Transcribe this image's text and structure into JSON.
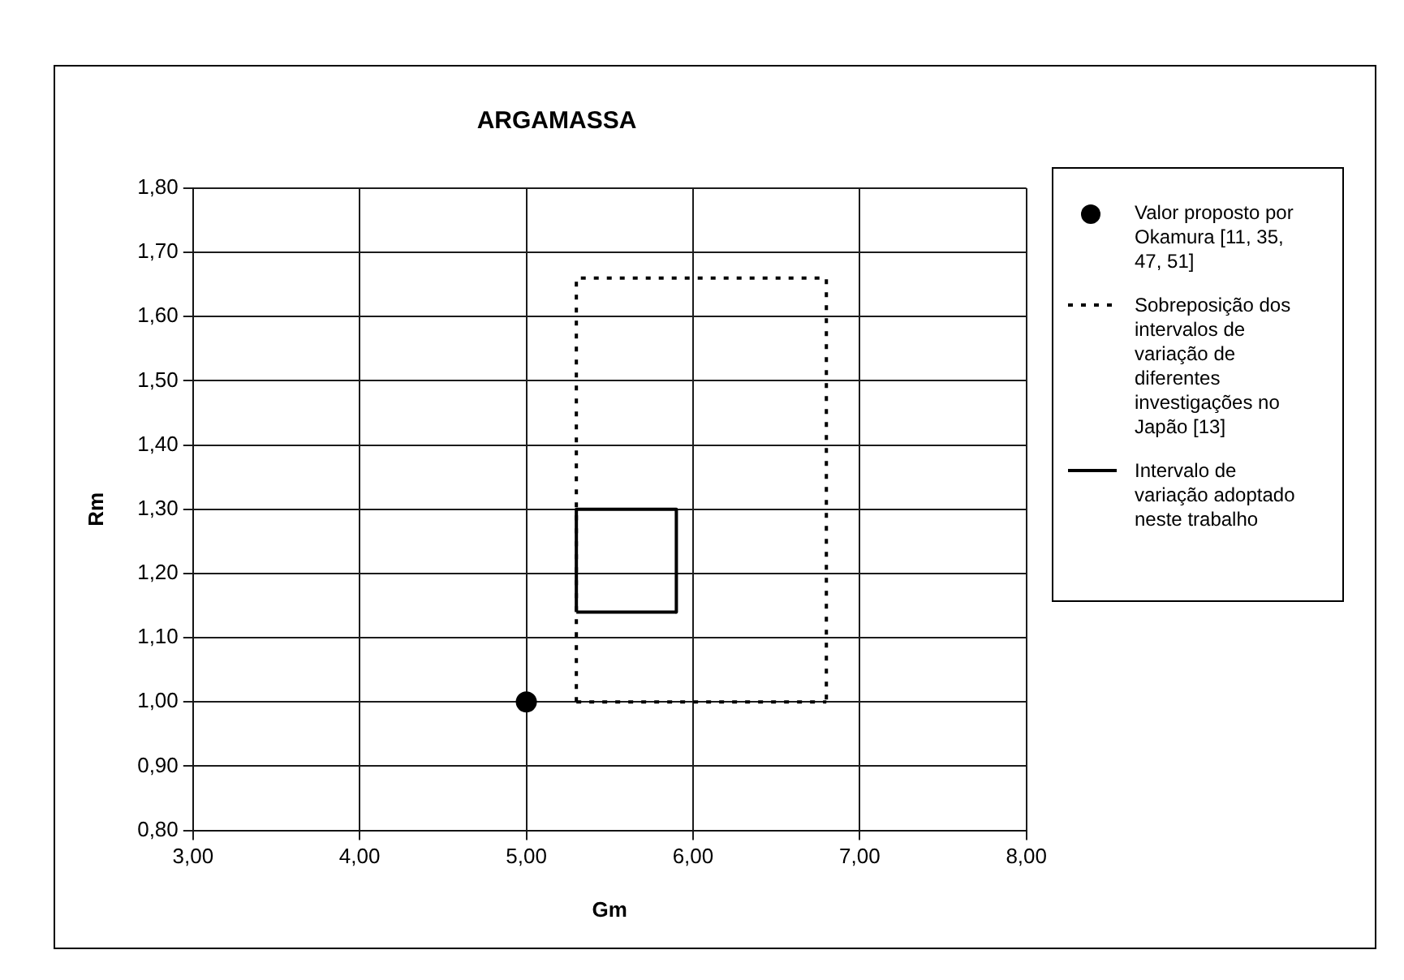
{
  "chart_data": {
    "type": "scatter",
    "title": "ARGAMASSA",
    "xlabel": "Gm",
    "ylabel": "Rm",
    "xlim": [
      3,
      8
    ],
    "xticks": [
      {
        "value": 3,
        "label": "3,00"
      },
      {
        "value": 4,
        "label": "4,00"
      },
      {
        "value": 5,
        "label": "5,00"
      },
      {
        "value": 6,
        "label": "6,00"
      },
      {
        "value": 7,
        "label": "7,00"
      },
      {
        "value": 8,
        "label": "8,00"
      }
    ],
    "ylim": [
      0.8,
      1.8
    ],
    "yticks": [
      {
        "value": 0.8,
        "label": "0,80"
      },
      {
        "value": 0.9,
        "label": "0,90"
      },
      {
        "value": 1.0,
        "label": "1,00"
      },
      {
        "value": 1.1,
        "label": "1,10"
      },
      {
        "value": 1.2,
        "label": "1,20"
      },
      {
        "value": 1.3,
        "label": "1,30"
      },
      {
        "value": 1.4,
        "label": "1,40"
      },
      {
        "value": 1.5,
        "label": "1,50"
      },
      {
        "value": 1.6,
        "label": "1,60"
      },
      {
        "value": 1.7,
        "label": "1,70"
      },
      {
        "value": 1.8,
        "label": "1,80"
      }
    ],
    "grid": true,
    "legend": "right",
    "series": [
      {
        "name": "Valor proposto por Okamura [11, 35, 47, 51]",
        "type": "scatter",
        "color": "#000000",
        "marker": "circle",
        "x": [
          5.0
        ],
        "values": [
          1.0
        ]
      },
      {
        "name": "Sobreposição dos intervalos de variação de diferentes investigações no Japão [13]",
        "type": "line",
        "color": "#000000",
        "line_style": "dotted",
        "marker": "none",
        "x": [
          5.3,
          5.3,
          6.8,
          6.8
        ],
        "values": [
          1.0,
          1.66,
          1.66,
          1.0
        ]
      },
      {
        "name": "Intervalo de variação adoptado neste trabalho",
        "type": "line",
        "color": "#000000",
        "line_style": "solid",
        "marker": "none",
        "x": [
          5.3,
          5.3,
          5.9,
          5.9
        ],
        "values": [
          1.14,
          1.3,
          1.3,
          1.14
        ]
      },
      {
        "type": "line",
        "color": "#000000",
        "line_style": "dotted",
        "marker": "none",
        "x": [
          5.3,
          6.8
        ],
        "values": [
          1.0,
          1.0
        ]
      },
      {
        "type": "line",
        "color": "#000000",
        "line_style": "solid",
        "marker": "none",
        "x": [
          5.3,
          5.9
        ],
        "values": [
          1.14,
          1.14
        ]
      }
    ]
  }
}
